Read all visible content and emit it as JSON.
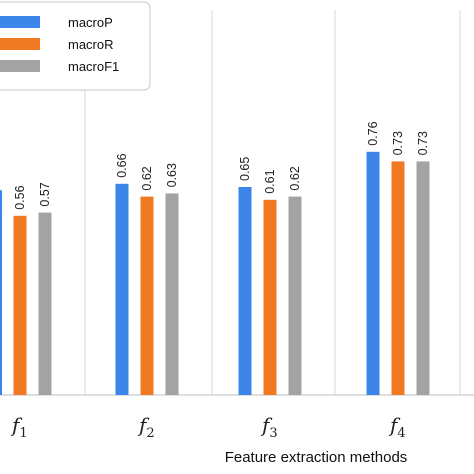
{
  "chart_data": {
    "type": "bar",
    "xlabel": "Feature extraction methods",
    "categories": [
      {
        "base": "f",
        "sub": "1"
      },
      {
        "base": "f",
        "sub": "2"
      },
      {
        "base": "f",
        "sub": "3"
      },
      {
        "base": "f",
        "sub": "4"
      }
    ],
    "series": [
      {
        "name": "macroP",
        "color": "#3b86e8",
        "values": [
          null,
          0.66,
          0.65,
          0.76
        ]
      },
      {
        "name": "macroR",
        "color": "#f07a24",
        "values": [
          0.56,
          0.62,
          0.61,
          0.73
        ]
      },
      {
        "name": "macroF1",
        "color": "#a3a3a3",
        "values": [
          0.57,
          0.63,
          0.62,
          0.73
        ]
      }
    ],
    "grid": {
      "vertical": true,
      "horizontal": false
    },
    "legend_position": "top-left"
  }
}
